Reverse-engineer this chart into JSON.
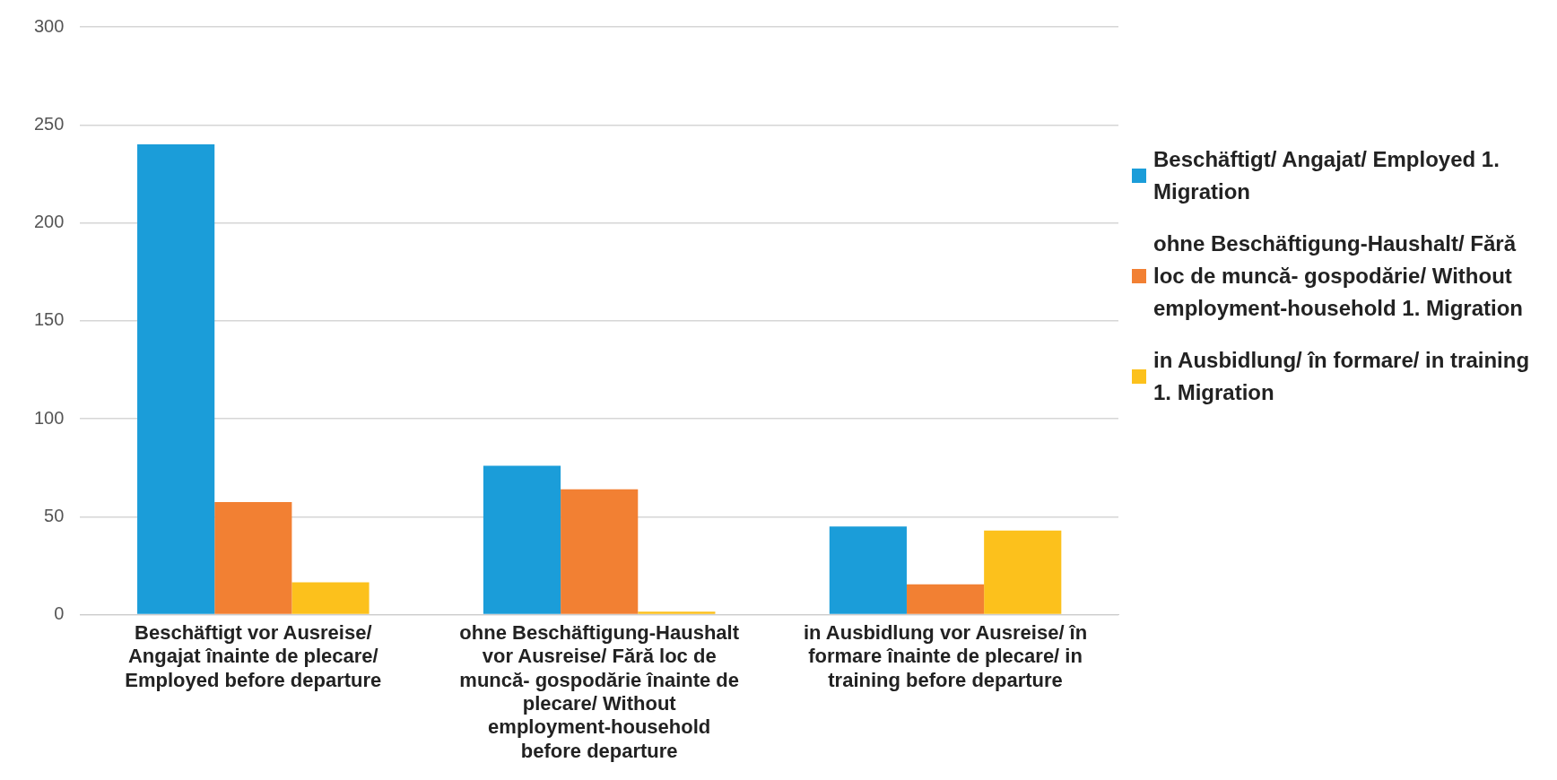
{
  "chart_data": {
    "type": "bar",
    "categories": [
      "Beschäftigt vor Ausreise/ Angajat înainte de plecare/ Employed before departure",
      "ohne Beschäftigung-Haushalt vor Ausreise/ Fără loc de muncă- gospodărie înainte de plecare/ Without employment-household before departure",
      "in Ausbidlung vor Ausreise/ în formare înainte de plecare/ in training before departure"
    ],
    "series": [
      {
        "name": "Beschäftigt/ Angajat/ Employed 1. Migration",
        "color": "#1b9dd9",
        "values": [
          240,
          76,
          45
        ]
      },
      {
        "name": "ohne Beschäftigung-Haushalt/ Fără loc de muncă- gospodărie/ Without employment-household 1. Migration",
        "color": "#f28033",
        "values": [
          57.5,
          64,
          15.5
        ]
      },
      {
        "name": "in Ausbidlung/ în formare/ in training 1. Migration",
        "color": "#fcc11c",
        "values": [
          16.5,
          1.5,
          43
        ]
      }
    ],
    "ylim": [
      0,
      300
    ],
    "yticks": [
      0,
      50,
      100,
      150,
      200,
      250,
      300
    ],
    "grid": "y",
    "legend": "right"
  }
}
